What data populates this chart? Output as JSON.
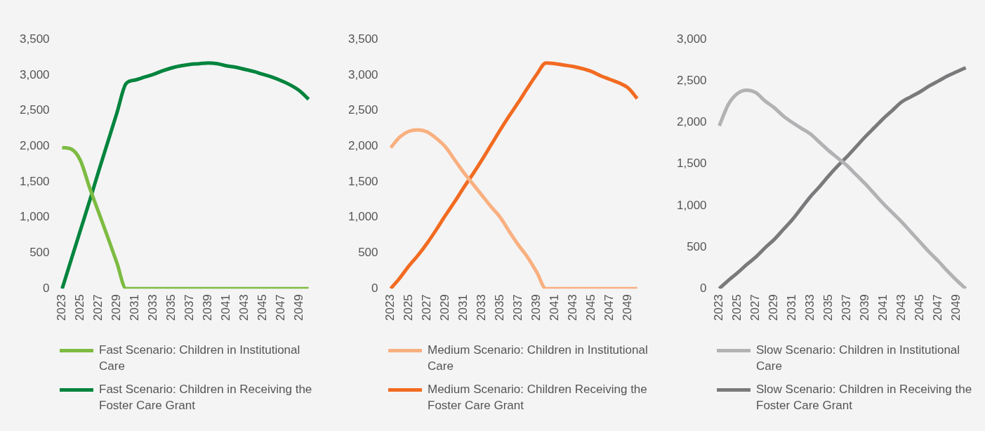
{
  "chart_data": [
    {
      "type": "line",
      "categories": [
        "2023",
        null,
        "2025",
        null,
        "2027",
        null,
        "2029",
        null,
        "2031",
        null,
        "2033",
        null,
        "2035",
        null,
        "2037",
        null,
        "2039",
        null,
        "2041",
        null,
        "2043",
        null,
        "2045",
        null,
        "2047",
        null,
        "2049",
        null
      ],
      "ylim": [
        0,
        3500
      ],
      "yticks": [
        {
          "value": 0,
          "label": "0"
        },
        {
          "value": 500,
          "label": "500"
        },
        {
          "value": 1000,
          "label": "1,000"
        },
        {
          "value": 1500,
          "label": "1,500"
        },
        {
          "value": 2000,
          "label": "2,000"
        },
        {
          "value": 2500,
          "label": "2,500"
        },
        {
          "value": 3000,
          "label": "3,000"
        },
        {
          "value": 3500,
          "label": "3,500"
        }
      ],
      "legend": "bottom",
      "series": [
        {
          "name": "Fast Scenario: Children in Institutional Care",
          "color": "#7dbb42",
          "values": [
            1980,
            1960,
            1800,
            1420,
            1070,
            720,
            360,
            0,
            0,
            0,
            0,
            0,
            0,
            0,
            0,
            0,
            0,
            0,
            0,
            0,
            0,
            0,
            0,
            0,
            0,
            0,
            0,
            0
          ]
        },
        {
          "name": "Fast Scenario: Children in Receiving the Foster Care Grant",
          "color": "#00843d",
          "values": [
            0,
            410,
            820,
            1230,
            1650,
            2060,
            2470,
            2880,
            2930,
            2970,
            3010,
            3060,
            3100,
            3130,
            3150,
            3160,
            3170,
            3160,
            3130,
            3110,
            3080,
            3050,
            3010,
            2970,
            2920,
            2860,
            2780,
            2660
          ]
        }
      ]
    },
    {
      "type": "line",
      "categories": [
        "2023",
        null,
        "2025",
        null,
        "2027",
        null,
        "2029",
        null,
        "2031",
        null,
        "2033",
        null,
        "2035",
        null,
        "2037",
        null,
        "2039",
        null,
        "2041",
        null,
        "2043",
        null,
        "2045",
        null,
        "2047",
        null,
        "2049",
        null
      ],
      "ylim": [
        0,
        3500
      ],
      "yticks": [
        {
          "value": 0,
          "label": "0"
        },
        {
          "value": 500,
          "label": "500"
        },
        {
          "value": 1000,
          "label": "1,000"
        },
        {
          "value": 1500,
          "label": "1,500"
        },
        {
          "value": 2000,
          "label": "2,000"
        },
        {
          "value": 2500,
          "label": "2,500"
        },
        {
          "value": 3000,
          "label": "3,000"
        },
        {
          "value": 3500,
          "label": "3,500"
        }
      ],
      "legend": "bottom",
      "series": [
        {
          "name": "Medium Scenario: Children in Institutional Care",
          "color": "#f9b080",
          "values": [
            1980,
            2130,
            2210,
            2230,
            2200,
            2110,
            1990,
            1810,
            1630,
            1470,
            1310,
            1150,
            1000,
            800,
            610,
            440,
            230,
            0,
            0,
            0,
            0,
            0,
            0,
            0,
            0,
            0,
            0,
            0
          ]
        },
        {
          "name": "Medium Scenario: Children Receiving the Foster Care Grant",
          "color": "#f26b21",
          "values": [
            0,
            150,
            320,
            470,
            640,
            830,
            1030,
            1220,
            1420,
            1610,
            1810,
            2020,
            2230,
            2430,
            2620,
            2820,
            3010,
            3170,
            3160,
            3140,
            3120,
            3090,
            3050,
            2990,
            2940,
            2890,
            2820,
            2670
          ]
        }
      ]
    },
    {
      "type": "line",
      "categories": [
        "2023",
        null,
        "2025",
        null,
        "2027",
        null,
        "2029",
        null,
        "2031",
        null,
        "2033",
        null,
        "2035",
        null,
        "2037",
        null,
        "2039",
        null,
        "2041",
        null,
        "2043",
        null,
        "2045",
        null,
        "2047",
        null,
        "2049",
        null
      ],
      "ylim": [
        0,
        3000
      ],
      "yticks": [
        {
          "value": 0,
          "label": "0"
        },
        {
          "value": 500,
          "label": "500"
        },
        {
          "value": 1000,
          "label": "1,000"
        },
        {
          "value": 1500,
          "label": "1,500"
        },
        {
          "value": 2000,
          "label": "2,000"
        },
        {
          "value": 2500,
          "label": "2,500"
        },
        {
          "value": 3000,
          "label": "3,000"
        }
      ],
      "legend": "bottom",
      "series": [
        {
          "name": "Slow Scenario: Children in Institutional Care",
          "color": "#b2b2b4",
          "values": [
            1960,
            2220,
            2350,
            2390,
            2360,
            2260,
            2180,
            2080,
            2000,
            1930,
            1860,
            1760,
            1660,
            1570,
            1480,
            1370,
            1260,
            1140,
            1020,
            910,
            800,
            680,
            560,
            440,
            330,
            210,
            100,
            0
          ]
        },
        {
          "name": "Slow Scenario: Children in Receiving the Foster Care Grant",
          "color": "#7a7a7c",
          "values": [
            0,
            100,
            190,
            290,
            380,
            490,
            590,
            710,
            830,
            970,
            1110,
            1230,
            1360,
            1480,
            1590,
            1710,
            1830,
            1940,
            2050,
            2150,
            2250,
            2310,
            2370,
            2440,
            2500,
            2560,
            2610,
            2660
          ]
        }
      ]
    }
  ]
}
